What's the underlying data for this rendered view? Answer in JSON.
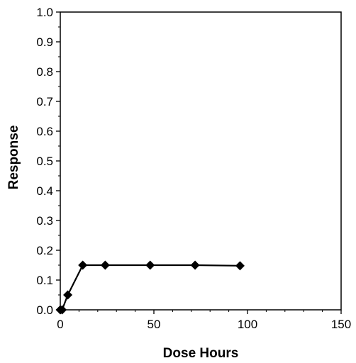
{
  "chart_data": {
    "type": "line",
    "title": "",
    "xlabel": "Dose Hours",
    "ylabel": "Response",
    "xlim": [
      0,
      150
    ],
    "ylim": [
      0.0,
      1.0
    ],
    "xticks": [
      0,
      50,
      100,
      150
    ],
    "xtick_labels": [
      "0",
      "50",
      "100",
      "150"
    ],
    "yticks": [
      0.0,
      0.1,
      0.2,
      0.3,
      0.4,
      0.5,
      0.6,
      0.7,
      0.8,
      0.9,
      1.0
    ],
    "ytick_labels": [
      "0.0",
      "0.1",
      "0.2",
      "0.3",
      "0.4",
      "0.5",
      "0.6",
      "0.7",
      "0.8",
      "0.9",
      "1.0"
    ],
    "grid": false,
    "legend": "none",
    "marker": "diamond",
    "line_color": "#000000",
    "series": [
      {
        "x": [
          0,
          1,
          4,
          12,
          24,
          48,
          72,
          96
        ],
        "y": [
          0.0,
          0.0,
          0.05,
          0.15,
          0.15,
          0.15,
          0.15,
          0.148
        ]
      }
    ]
  }
}
